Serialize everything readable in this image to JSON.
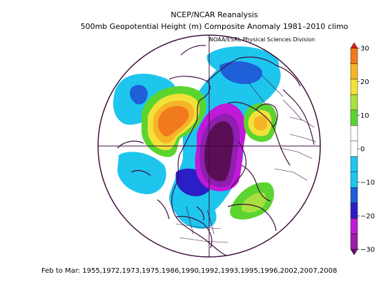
{
  "title_line1": "NCEP/NCAR Reanalysis",
  "title_line2": "500mb Geopotential Height (m) Composite Anomaly 1981–2010 climo",
  "credit": "NOAA/ESRL Physical Sciences Division",
  "footer": "Feb to Mar: 1955,1972,1973,1975,1986,1990,1992,1993,1995,1996,2002,2007,2008",
  "colorbar": {
    "ticks": [
      "30",
      "20",
      "10",
      "0",
      "−10",
      "−20",
      "−30"
    ],
    "colors": [
      "#6b0f7a",
      "#9b1fa6",
      "#c01ad8",
      "#2a1fc6",
      "#1f5fd8",
      "#1ec6ee",
      "#ffffff",
      "#ffffff",
      "#5cd430",
      "#a8e040",
      "#f2e238",
      "#f6b428",
      "#f07a1c",
      "#e01d1d"
    ]
  },
  "colors": {
    "map_line": "#3d0b3a",
    "dark_purple": "#5a0f55",
    "purple": "#8e1fb0",
    "magenta": "#c01ad8",
    "blue": "#2a1fc6",
    "mid_blue": "#1f5fd8",
    "light_blue": "#1ec6ee",
    "green": "#5cd430",
    "yellow_green": "#a8e040",
    "yellow": "#f2e238",
    "orange": "#f6b428",
    "dark_orange": "#f07a1c",
    "red": "#e01d1d"
  }
}
